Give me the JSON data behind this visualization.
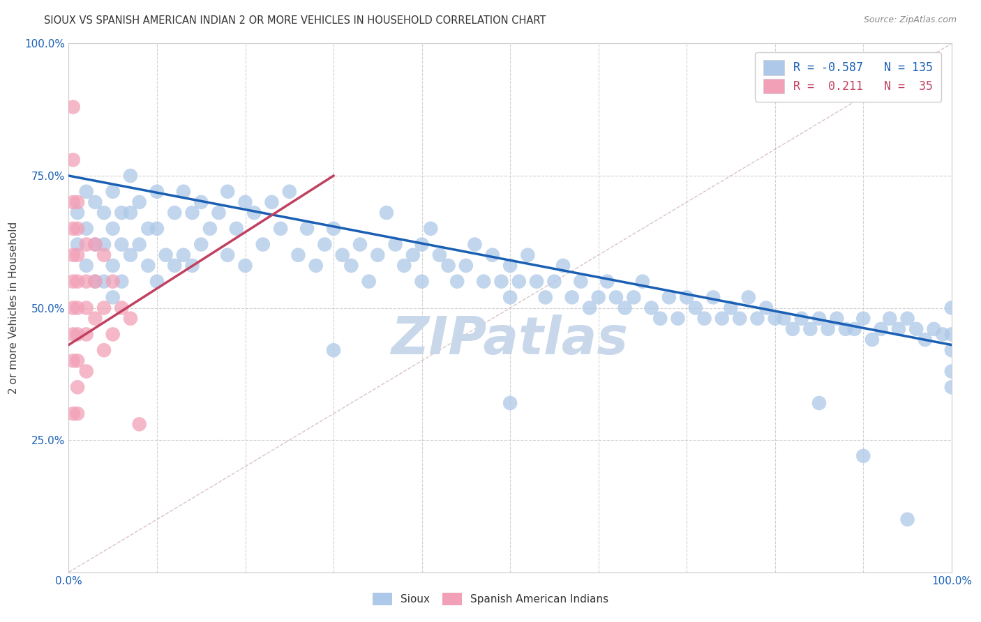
{
  "title": "SIOUX VS SPANISH AMERICAN INDIAN 2 OR MORE VEHICLES IN HOUSEHOLD CORRELATION CHART",
  "source": "Source: ZipAtlas.com",
  "ylabel": "2 or more Vehicles in Household",
  "xlim": [
    0,
    100
  ],
  "ylim": [
    0,
    100
  ],
  "R_blue": -0.587,
  "N_blue": 135,
  "R_pink": 0.211,
  "N_pink": 35,
  "blue_color": "#adc8e8",
  "blue_line_color": "#1a5fb4",
  "pink_color": "#f2a0b8",
  "pink_line_color": "#c04060",
  "watermark": "ZIPatlas",
  "watermark_color": "#c8d8ea",
  "background_color": "#ffffff",
  "grid_color": "#cccccc",
  "blue_line_x0": 0,
  "blue_line_y0": 75,
  "blue_line_x1": 100,
  "blue_line_y1": 43,
  "pink_line_x0": 0,
  "pink_line_y0": 43,
  "pink_line_x1": 30,
  "pink_line_y1": 75,
  "blue_scatter_x": [
    1,
    1,
    2,
    2,
    2,
    3,
    3,
    3,
    4,
    4,
    4,
    5,
    5,
    5,
    5,
    6,
    6,
    6,
    7,
    7,
    7,
    8,
    8,
    9,
    9,
    10,
    10,
    10,
    11,
    12,
    12,
    13,
    13,
    14,
    14,
    15,
    15,
    16,
    17,
    18,
    18,
    19,
    20,
    20,
    21,
    22,
    23,
    24,
    25,
    26,
    27,
    28,
    29,
    30,
    31,
    32,
    33,
    34,
    35,
    36,
    37,
    38,
    39,
    40,
    40,
    41,
    42,
    43,
    44,
    45,
    46,
    47,
    48,
    49,
    50,
    50,
    51,
    52,
    53,
    54,
    55,
    56,
    57,
    58,
    59,
    60,
    61,
    62,
    63,
    64,
    65,
    66,
    67,
    68,
    69,
    70,
    71,
    72,
    73,
    74,
    75,
    76,
    77,
    78,
    79,
    80,
    81,
    82,
    83,
    84,
    85,
    86,
    87,
    88,
    89,
    90,
    91,
    92,
    93,
    94,
    95,
    96,
    97,
    98,
    99,
    100,
    100,
    100,
    100,
    100,
    85,
    90,
    95,
    30,
    50
  ],
  "blue_scatter_y": [
    68,
    62,
    72,
    65,
    58,
    70,
    62,
    55,
    68,
    62,
    55,
    72,
    65,
    58,
    52,
    68,
    62,
    55,
    75,
    68,
    60,
    70,
    62,
    65,
    58,
    72,
    65,
    55,
    60,
    68,
    58,
    72,
    60,
    68,
    58,
    70,
    62,
    65,
    68,
    72,
    60,
    65,
    70,
    58,
    68,
    62,
    70,
    65,
    72,
    60,
    65,
    58,
    62,
    65,
    60,
    58,
    62,
    55,
    60,
    68,
    62,
    58,
    60,
    62,
    55,
    65,
    60,
    58,
    55,
    58,
    62,
    55,
    60,
    55,
    58,
    52,
    55,
    60,
    55,
    52,
    55,
    58,
    52,
    55,
    50,
    52,
    55,
    52,
    50,
    52,
    55,
    50,
    48,
    52,
    48,
    52,
    50,
    48,
    52,
    48,
    50,
    48,
    52,
    48,
    50,
    48,
    48,
    46,
    48,
    46,
    48,
    46,
    48,
    46,
    46,
    48,
    44,
    46,
    48,
    46,
    48,
    46,
    44,
    46,
    45,
    45,
    50,
    42,
    38,
    35,
    32,
    22,
    10,
    42,
    32
  ],
  "pink_scatter_x": [
    0.5,
    0.5,
    0.5,
    0.5,
    0.5,
    0.5,
    0.5,
    0.5,
    0.5,
    0.5,
    1,
    1,
    1,
    1,
    1,
    1,
    1,
    1,
    1,
    2,
    2,
    2,
    2,
    2,
    3,
    3,
    3,
    4,
    4,
    4,
    5,
    5,
    6,
    7,
    8
  ],
  "pink_scatter_y": [
    88,
    78,
    70,
    65,
    60,
    55,
    50,
    45,
    40,
    30,
    70,
    65,
    60,
    55,
    50,
    45,
    40,
    35,
    30,
    62,
    55,
    50,
    45,
    38,
    62,
    55,
    48,
    60,
    50,
    42,
    55,
    45,
    50,
    48,
    28
  ]
}
